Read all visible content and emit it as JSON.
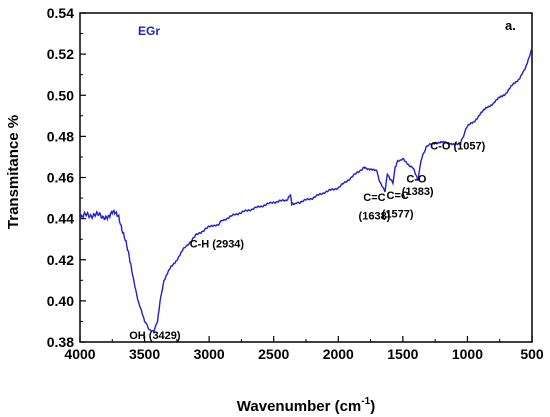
{
  "chart_data": {
    "type": "line",
    "xlabel": "Wavenumber (cm",
    "xlabel_sup": "-1",
    "xlabel_tail": ")",
    "ylabel": "Transmitance %",
    "xlim": [
      4000,
      500
    ],
    "ylim": [
      0.38,
      0.54
    ],
    "x_ticks": [
      4000,
      3500,
      3000,
      2500,
      2000,
      1500,
      1000,
      500
    ],
    "y_ticks": [
      0.38,
      0.4,
      0.42,
      0.44,
      0.46,
      0.48,
      0.5,
      0.52,
      0.54
    ],
    "x_tick_labels": [
      "4000",
      "3500",
      "3000",
      "2500",
      "2000",
      "1500",
      "1000",
      "500"
    ],
    "y_tick_labels": [
      "0.38",
      "0.40",
      "0.42",
      "0.44",
      "0.46",
      "0.48",
      "0.50",
      "0.52",
      "0.54"
    ],
    "series_label": "EGr",
    "panel_label": "a.",
    "color": "#1f1fcf",
    "series": [
      {
        "x": [
          4000,
          3900,
          3800,
          3750,
          3700,
          3650,
          3600,
          3550,
          3500,
          3460,
          3429,
          3400,
          3380,
          3350,
          3300,
          3250,
          3200,
          3100,
          3000,
          2934,
          2900,
          2800,
          2700,
          2600,
          2500,
          2400,
          2370,
          2360,
          2340,
          2300,
          2200,
          2100,
          2000,
          1900,
          1800,
          1750,
          1700,
          1680,
          1638,
          1620,
          1600,
          1577,
          1560,
          1540,
          1500,
          1450,
          1420,
          1383,
          1360,
          1320,
          1250,
          1200,
          1150,
          1100,
          1057,
          1040,
          1000,
          950,
          900,
          850,
          800,
          750,
          700,
          650,
          600,
          550,
          500
        ],
        "y": [
          0.441,
          0.442,
          0.441,
          0.443,
          0.441,
          0.43,
          0.415,
          0.4,
          0.39,
          0.386,
          0.3855,
          0.39,
          0.4,
          0.41,
          0.416,
          0.42,
          0.425,
          0.432,
          0.436,
          0.437,
          0.439,
          0.442,
          0.444,
          0.446,
          0.448,
          0.449,
          0.452,
          0.447,
          0.447,
          0.448,
          0.45,
          0.453,
          0.455,
          0.46,
          0.465,
          0.464,
          0.463,
          0.458,
          0.4535,
          0.462,
          0.459,
          0.4575,
          0.465,
          0.468,
          0.469,
          0.466,
          0.465,
          0.459,
          0.468,
          0.475,
          0.477,
          0.477,
          0.477,
          0.476,
          0.476,
          0.479,
          0.485,
          0.487,
          0.491,
          0.494,
          0.496,
          0.499,
          0.501,
          0.505,
          0.508,
          0.513,
          0.523
        ]
      }
    ],
    "annotations": [
      {
        "text": "OH (3429)",
        "x": 3420,
        "y": 0.3815
      },
      {
        "text": "C-H (2934)",
        "x": 2940,
        "y": 0.426
      },
      {
        "text": "C=C",
        "x": 1720,
        "y": 0.4485
      },
      {
        "text": "(1638)",
        "x": 1720,
        "y": 0.4395
      },
      {
        "text": "C=C",
        "x": 1540,
        "y": 0.4495
      },
      {
        "text": "(1577)",
        "x": 1540,
        "y": 0.4405
      },
      {
        "text": "C-O",
        "x": 1395,
        "y": 0.4575
      },
      {
        "text": "(1383)",
        "x": 1385,
        "y": 0.4515
      },
      {
        "text": "C-O (1057)",
        "x": 1075,
        "y": 0.4735
      }
    ]
  }
}
